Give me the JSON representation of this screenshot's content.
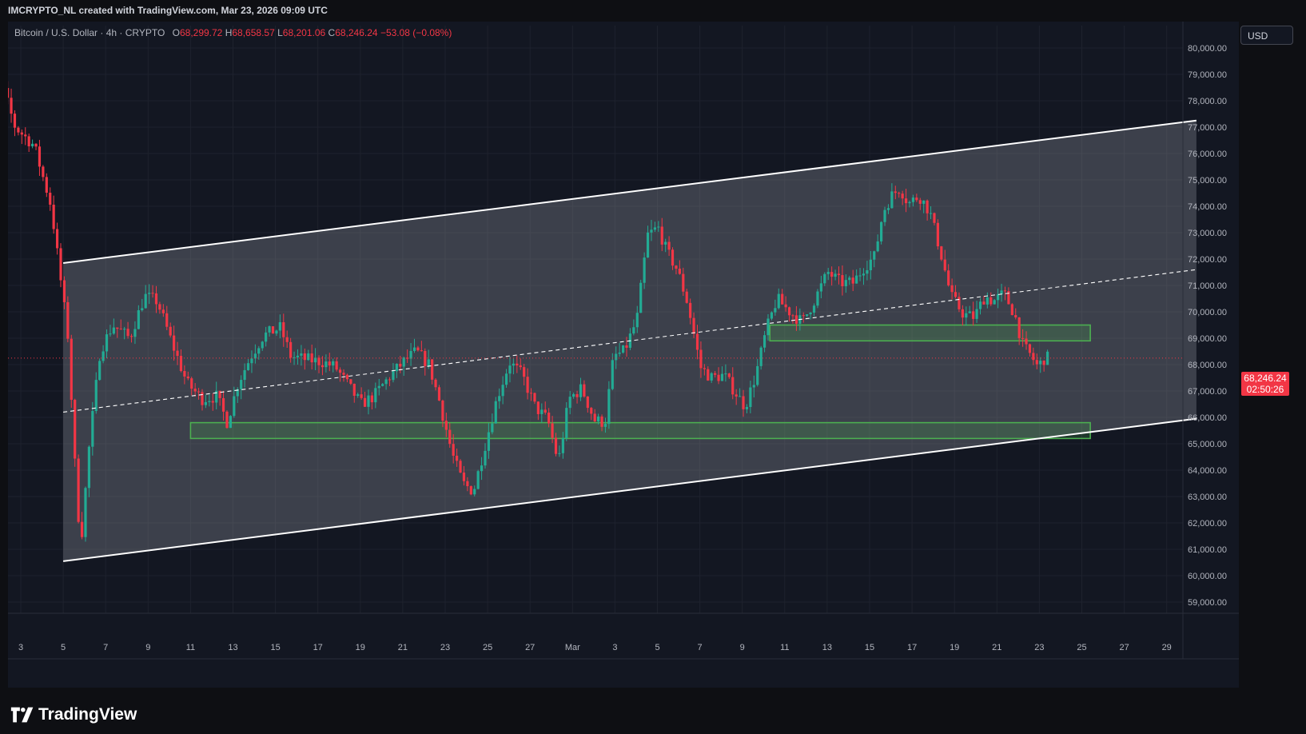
{
  "header": {
    "credit": "IMCRYPTO_NL created with TradingView.com, Mar 23, 2026 09:09 UTC"
  },
  "legend": {
    "symbol": "Bitcoin / U.S. Dollar · 4h · CRYPTO",
    "open_label": "O",
    "open": "68,299.72",
    "high_label": "H",
    "high": "68,658.57",
    "low_label": "L",
    "low": "68,201.06",
    "close_label": "C",
    "close": "68,246.24",
    "change": "−53.08 (−0.08%)"
  },
  "currency": "USD",
  "last_price": {
    "price": "68,246.24",
    "countdown": "02:50:26"
  },
  "brand": {
    "name": "TradingView"
  },
  "colors": {
    "background": "#131722",
    "up": "#22ab94",
    "down": "#f23645",
    "channel_fill": "#9598a1",
    "zone_border": "#4caf50",
    "zone_fill": "#4caf50",
    "last_price": "#f23645"
  },
  "chart_data": {
    "type": "candlestick",
    "symbol": "BTCUSD",
    "interval": "4h",
    "ylim": [
      58500,
      80500
    ],
    "y_ticks": [
      "80,000.00",
      "79,000.00",
      "78,000.00",
      "77,000.00",
      "76,000.00",
      "75,000.00",
      "74,000.00",
      "73,000.00",
      "72,000.00",
      "71,000.00",
      "70,000.00",
      "69,000.00",
      "68,000.00",
      "67,000.00",
      "66,000.00",
      "65,000.00",
      "64,000.00",
      "63,000.00",
      "62,000.00",
      "61,000.00",
      "60,000.00",
      "59,000.00"
    ],
    "y_tick_values": [
      80000,
      79000,
      78000,
      77000,
      76000,
      75000,
      74000,
      73000,
      72000,
      71000,
      70000,
      69000,
      68000,
      67000,
      66000,
      65000,
      64000,
      63000,
      62000,
      61000,
      60000,
      59000
    ],
    "x_ticks": [
      {
        "label": "3",
        "day": 3
      },
      {
        "label": "5",
        "day": 5
      },
      {
        "label": "7",
        "day": 7
      },
      {
        "label": "9",
        "day": 9
      },
      {
        "label": "11",
        "day": 11
      },
      {
        "label": "13",
        "day": 13
      },
      {
        "label": "15",
        "day": 15
      },
      {
        "label": "17",
        "day": 17
      },
      {
        "label": "19",
        "day": 19
      },
      {
        "label": "21",
        "day": 21
      },
      {
        "label": "23",
        "day": 23
      },
      {
        "label": "25",
        "day": 25
      },
      {
        "label": "27",
        "day": 27
      },
      {
        "label": "Mar",
        "day": 29
      },
      {
        "label": "3",
        "day": 31
      },
      {
        "label": "5",
        "day": 33
      },
      {
        "label": "7",
        "day": 35
      },
      {
        "label": "9",
        "day": 37
      },
      {
        "label": "11",
        "day": 39
      },
      {
        "label": "13",
        "day": 41
      },
      {
        "label": "15",
        "day": 43
      },
      {
        "label": "17",
        "day": 45
      },
      {
        "label": "19",
        "day": 47
      },
      {
        "label": "21",
        "day": 49
      },
      {
        "label": "23",
        "day": 51
      },
      {
        "label": "25",
        "day": 53
      },
      {
        "label": "27",
        "day": 55
      },
      {
        "label": "29",
        "day": 57
      }
    ],
    "x_unit": "days since Feb 1 (Mar 1 = 29)",
    "x_range": [
      1.05,
      58.4
    ],
    "price_path": [
      [
        1.05,
        78500
      ],
      [
        1.6,
        79000
      ],
      [
        2.2,
        78800
      ],
      [
        2.9,
        77000
      ],
      [
        3.8,
        76300
      ],
      [
        4.6,
        74000
      ],
      [
        5.0,
        71500
      ],
      [
        5.4,
        69000
      ],
      [
        5.8,
        63000
      ],
      [
        6.0,
        61200
      ],
      [
        6.4,
        65000
      ],
      [
        6.9,
        68500
      ],
      [
        7.5,
        69500
      ],
      [
        8.3,
        69000
      ],
      [
        9.0,
        70600
      ],
      [
        9.6,
        70400
      ],
      [
        10.3,
        68800
      ],
      [
        11.0,
        67300
      ],
      [
        11.7,
        66700
      ],
      [
        12.4,
        66800
      ],
      [
        12.9,
        65800
      ],
      [
        13.4,
        67300
      ],
      [
        14.0,
        68300
      ],
      [
        14.6,
        69100
      ],
      [
        15.4,
        69400
      ],
      [
        15.9,
        68300
      ],
      [
        16.6,
        68200
      ],
      [
        17.4,
        68100
      ],
      [
        18.0,
        67900
      ],
      [
        18.6,
        67200
      ],
      [
        19.2,
        66500
      ],
      [
        19.8,
        66800
      ],
      [
        20.5,
        67500
      ],
      [
        21.2,
        68100
      ],
      [
        21.8,
        68500
      ],
      [
        22.4,
        68000
      ],
      [
        22.9,
        66600
      ],
      [
        23.5,
        64600
      ],
      [
        24.0,
        63500
      ],
      [
        24.5,
        63200
      ],
      [
        25.0,
        64800
      ],
      [
        25.6,
        66700
      ],
      [
        26.2,
        68100
      ],
      [
        26.8,
        67600
      ],
      [
        27.4,
        66400
      ],
      [
        28.0,
        65900
      ],
      [
        28.5,
        64300
      ],
      [
        29.0,
        66700
      ],
      [
        29.6,
        67100
      ],
      [
        30.2,
        65900
      ],
      [
        30.7,
        65800
      ],
      [
        31.1,
        68300
      ],
      [
        31.6,
        68500
      ],
      [
        32.2,
        69700
      ],
      [
        32.7,
        72900
      ],
      [
        33.2,
        73200
      ],
      [
        33.6,
        72300
      ],
      [
        34.1,
        71600
      ],
      [
        34.6,
        70300
      ],
      [
        35.2,
        67900
      ],
      [
        35.7,
        67500
      ],
      [
        36.3,
        67600
      ],
      [
        36.8,
        67000
      ],
      [
        37.3,
        66400
      ],
      [
        37.8,
        67600
      ],
      [
        38.3,
        69300
      ],
      [
        38.8,
        70500
      ],
      [
        39.4,
        70000
      ],
      [
        40.0,
        69600
      ],
      [
        40.6,
        70500
      ],
      [
        41.2,
        71500
      ],
      [
        41.8,
        71100
      ],
      [
        42.4,
        71100
      ],
      [
        42.9,
        71700
      ],
      [
        43.4,
        72100
      ],
      [
        43.8,
        73800
      ],
      [
        44.2,
        74400
      ],
      [
        44.6,
        74700
      ],
      [
        45.0,
        74100
      ],
      [
        45.5,
        74400
      ],
      [
        46.0,
        73800
      ],
      [
        46.5,
        72300
      ],
      [
        47.0,
        70600
      ],
      [
        47.6,
        69900
      ],
      [
        48.1,
        69800
      ],
      [
        48.6,
        70600
      ],
      [
        49.0,
        70400
      ],
      [
        49.5,
        70700
      ],
      [
        50.0,
        69900
      ],
      [
        50.4,
        68700
      ],
      [
        50.8,
        68300
      ],
      [
        51.1,
        67900
      ],
      [
        51.4,
        68250
      ]
    ],
    "channel": {
      "upper": [
        [
          5.0,
          71850
        ],
        [
          58.4,
          77250
        ]
      ],
      "lower": [
        [
          5.0,
          60550
        ],
        [
          58.4,
          65950
        ]
      ],
      "midline": [
        [
          5.0,
          66200
        ],
        [
          58.4,
          71600
        ]
      ]
    },
    "zones": [
      {
        "x": [
          11.0,
          53.4
        ],
        "y": [
          65200,
          65800
        ]
      },
      {
        "x": [
          38.3,
          53.4
        ],
        "y": [
          68900,
          69500
        ]
      }
    ],
    "last_price": 68246.24
  }
}
